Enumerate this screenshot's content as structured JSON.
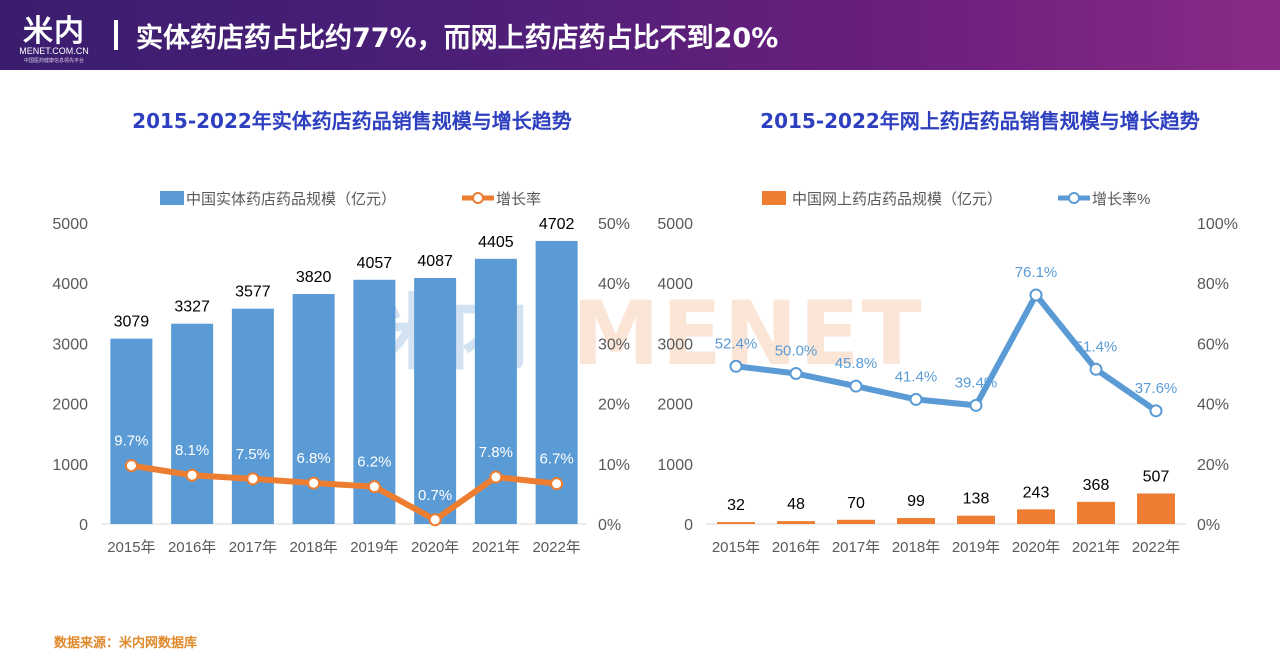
{
  "header": {
    "logo_text": "米内",
    "logo_sub": "MENET.COM.CN",
    "logo_tiny": "中国医药健康信息领先平台",
    "title": "实体药店药占比约77%，而网上药店药占比不到20%"
  },
  "watermark": {
    "cn": "米内",
    "en": "MENET"
  },
  "footer": {
    "source": "数据来源：米内网数据库"
  },
  "colors": {
    "blue": "#5b9bd5",
    "orange": "#ed7d31",
    "title": "#2e3fbf",
    "axis": "#595959"
  },
  "chart_data": [
    {
      "type": "bar",
      "title": "2015-2022年实体药店药品销售规模与增长趋势",
      "categories": [
        "2015年",
        "2016年",
        "2017年",
        "2018年",
        "2019年",
        "2020年",
        "2021年",
        "2022年"
      ],
      "series": [
        {
          "name": "中国实体药店药品规模（亿元）",
          "type": "bar",
          "axis": "left",
          "color": "#5b9bd5",
          "values": [
            3079,
            3327,
            3577,
            3820,
            4057,
            4087,
            4405,
            4702
          ],
          "labels": [
            "3079",
            "3327",
            "3577",
            "3820",
            "4057",
            "4087",
            "4405",
            "4702"
          ]
        },
        {
          "name": "增长率",
          "type": "line",
          "axis": "right",
          "color": "#ed7d31",
          "values": [
            9.7,
            8.1,
            7.5,
            6.8,
            6.2,
            0.7,
            7.8,
            6.7
          ],
          "labels": [
            "9.7%",
            "8.1%",
            "7.5%",
            "6.8%",
            "6.2%",
            "0.7%",
            "7.8%",
            "6.7%"
          ],
          "label_color": "#ffffff"
        }
      ],
      "ylim": [
        0,
        5000
      ],
      "y_ticks": [
        0,
        1000,
        2000,
        3000,
        4000,
        5000
      ],
      "y_tick_labels": [
        "0",
        "1000",
        "2000",
        "3000",
        "4000",
        "5000"
      ],
      "y2lim": [
        0,
        50
      ],
      "y2_ticks": [
        0,
        10,
        20,
        30,
        40,
        50
      ],
      "y2_tick_labels": [
        "0%",
        "10%",
        "20%",
        "30%",
        "40%",
        "50%"
      ],
      "grid": false,
      "legend": "top"
    },
    {
      "type": "bar",
      "title": "2015-2022年网上药店药品销售规模与增长趋势",
      "categories": [
        "2015年",
        "2016年",
        "2017年",
        "2018年",
        "2019年",
        "2020年",
        "2021年",
        "2022年"
      ],
      "series": [
        {
          "name": "中国网上药店药品规模（亿元）",
          "type": "bar",
          "axis": "left",
          "color": "#ed7d31",
          "values": [
            32,
            48,
            70,
            99,
            138,
            243,
            368,
            507
          ],
          "labels": [
            "32",
            "48",
            "70",
            "99",
            "138",
            "243",
            "368",
            "507"
          ]
        },
        {
          "name": "增长率%",
          "type": "line",
          "axis": "right",
          "color": "#5b9bd5",
          "values": [
            52.4,
            50.0,
            45.8,
            41.4,
            39.4,
            76.1,
            51.4,
            37.6
          ],
          "labels": [
            "52.4%",
            "50.0%",
            "45.8%",
            "41.4%",
            "39.4%",
            "76.1%",
            "51.4%",
            "37.6%"
          ],
          "label_color": "#5b9bd5"
        }
      ],
      "ylim": [
        0,
        5000
      ],
      "y_ticks": [
        0,
        1000,
        2000,
        3000,
        4000,
        5000
      ],
      "y_tick_labels": [
        "0",
        "1000",
        "2000",
        "3000",
        "4000",
        "5000"
      ],
      "y2lim": [
        0,
        100
      ],
      "y2_ticks": [
        0,
        20,
        40,
        60,
        80,
        100
      ],
      "y2_tick_labels": [
        "0%",
        "20%",
        "40%",
        "60%",
        "80%",
        "100%"
      ],
      "grid": false,
      "legend": "top"
    }
  ]
}
